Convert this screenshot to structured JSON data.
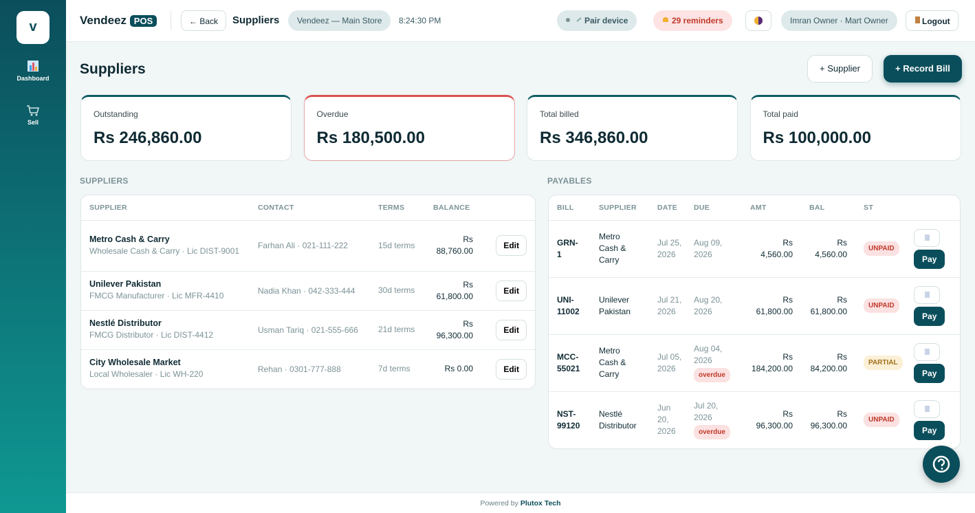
{
  "sidebar": {
    "logo": "v",
    "nav": [
      {
        "label": "Dashboard"
      },
      {
        "label": "Sell"
      }
    ]
  },
  "header": {
    "brand": "Vendeez",
    "badge": "POS",
    "back": "← Back",
    "title": "Suppliers",
    "store": "Vendeez — Main Store",
    "time": "8:24:30 PM",
    "pair": "Pair device",
    "reminders": "29 reminders",
    "user": "Imran Owner · Mart Owner",
    "logout": "Logout"
  },
  "page": {
    "title": "Suppliers",
    "add_supplier": "+ Supplier",
    "record_bill": "+ Record Bill"
  },
  "stats": [
    {
      "label": "Outstanding",
      "value": "Rs 246,860.00"
    },
    {
      "label": "Overdue",
      "value": "Rs 180,500.00"
    },
    {
      "label": "Total billed",
      "value": "Rs 346,860.00"
    },
    {
      "label": "Total paid",
      "value": "Rs 100,000.00"
    }
  ],
  "suppliers": {
    "heading": "SUPPLIERS",
    "columns": [
      "SUPPLIER",
      "CONTACT",
      "TERMS",
      "BALANCE"
    ],
    "rows": [
      {
        "name": "Metro Cash & Carry",
        "detail": "Wholesale Cash & Carry · Lic DIST-9001",
        "contact": "Farhan Ali · 021-111-222",
        "terms": "15d terms",
        "balance": "Rs 88,760.00",
        "action": "Edit"
      },
      {
        "name": "Unilever Pakistan",
        "detail": "FMCG Manufacturer · Lic MFR-4410",
        "contact": "Nadia Khan · 042-333-444",
        "terms": "30d terms",
        "balance": "Rs 61,800.00",
        "action": "Edit"
      },
      {
        "name": "Nestlé Distributor",
        "detail": "FMCG Distributor · Lic DIST-4412",
        "contact": "Usman Tariq · 021-555-666",
        "terms": "21d terms",
        "balance": "Rs 96,300.00",
        "action": "Edit"
      },
      {
        "name": "City Wholesale Market",
        "detail": "Local Wholesaler · Lic WH-220",
        "contact": "Rehan · 0301-777-888",
        "terms": "7d terms",
        "balance": "Rs 0.00",
        "action": "Edit"
      }
    ]
  },
  "payables": {
    "heading": "PAYABLES",
    "columns": [
      "BILL",
      "SUPPLIER",
      "DATE",
      "DUE",
      "AMT",
      "BAL",
      "ST"
    ],
    "rows": [
      {
        "bill": "GRN-1",
        "supplier": "Metro Cash & Carry",
        "date": "Jul 25, 2026",
        "due": "Aug 09, 2026",
        "amount": "Rs 4,560.00",
        "balance": "Rs 4,560.00",
        "status": "UNPAID",
        "action": "Pay"
      },
      {
        "bill": "UNI-11002",
        "supplier": "Unilever Pakistan",
        "date": "Jul 21, 2026",
        "due": "Aug 20, 2026",
        "amount": "Rs 61,800.00",
        "balance": "Rs 61,800.00",
        "status": "UNPAID",
        "action": "Pay"
      },
      {
        "bill": "MCC-55021",
        "supplier": "Metro Cash & Carry",
        "date": "Jul 05, 2026",
        "due": "Aug 04, 2026",
        "flag": "overdue",
        "amount": "Rs 184,200.00",
        "balance": "Rs 84,200.00",
        "status": "PARTIAL",
        "action": "Pay"
      },
      {
        "bill": "NST-99120",
        "supplier": "Nestlé Distributor",
        "date": "Jun 20, 2026",
        "due": "Jul 20, 2026",
        "flag": "overdue",
        "amount": "Rs 96,300.00",
        "balance": "Rs 96,300.00",
        "status": "UNPAID",
        "action": "Pay"
      }
    ]
  },
  "footer": {
    "prefix": "Powered by",
    "brand": "Plutox Tech"
  }
}
